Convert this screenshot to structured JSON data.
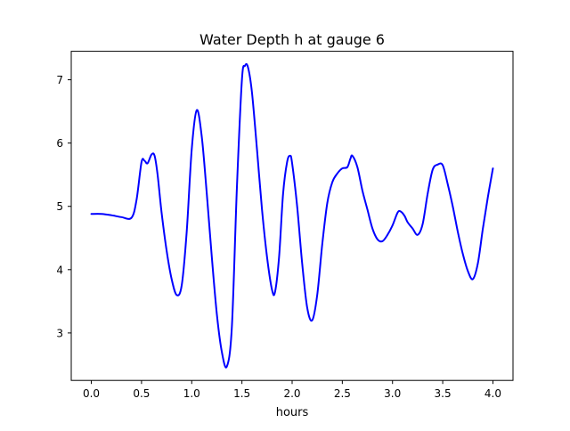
{
  "chart_data": {
    "type": "line",
    "title": "Water Depth h at gauge 6",
    "xlabel": "hours",
    "ylabel": "",
    "xlim": [
      -0.2,
      4.2
    ],
    "ylim": [
      2.25,
      7.45
    ],
    "xticks": [
      0.0,
      0.5,
      1.0,
      1.5,
      2.0,
      2.5,
      3.0,
      3.5,
      4.0
    ],
    "xtick_labels": [
      "0.0",
      "0.5",
      "1.0",
      "1.5",
      "2.0",
      "2.5",
      "3.0",
      "3.5",
      "4.0"
    ],
    "yticks": [
      3,
      4,
      5,
      6,
      7
    ],
    "ytick_labels": [
      "3",
      "4",
      "5",
      "6",
      "7"
    ],
    "grid": false,
    "series": [
      {
        "color": "#0000ff",
        "x": [
          0.0,
          0.1,
          0.2,
          0.3,
          0.4,
          0.45,
          0.5,
          0.53,
          0.56,
          0.6,
          0.63,
          0.66,
          0.7,
          0.75,
          0.8,
          0.85,
          0.9,
          0.95,
          1.0,
          1.05,
          1.1,
          1.15,
          1.2,
          1.25,
          1.3,
          1.35,
          1.4,
          1.45,
          1.5,
          1.53,
          1.56,
          1.6,
          1.65,
          1.7,
          1.75,
          1.8,
          1.83,
          1.87,
          1.91,
          1.95,
          1.98,
          2.0,
          2.05,
          2.1,
          2.15,
          2.2,
          2.25,
          2.3,
          2.35,
          2.4,
          2.45,
          2.5,
          2.55,
          2.58,
          2.6,
          2.65,
          2.7,
          2.75,
          2.8,
          2.85,
          2.9,
          2.95,
          3.0,
          3.05,
          3.08,
          3.12,
          3.15,
          3.2,
          3.25,
          3.3,
          3.35,
          3.4,
          3.45,
          3.5,
          3.55,
          3.6,
          3.65,
          3.7,
          3.75,
          3.8,
          3.85,
          3.9,
          3.95,
          4.0
        ],
        "y": [
          4.88,
          4.88,
          4.86,
          4.83,
          4.82,
          5.1,
          5.7,
          5.72,
          5.68,
          5.82,
          5.8,
          5.5,
          4.9,
          4.3,
          3.85,
          3.6,
          3.75,
          4.6,
          5.9,
          6.52,
          6.1,
          5.2,
          4.2,
          3.3,
          2.7,
          2.47,
          3.1,
          5.3,
          7.0,
          7.22,
          7.2,
          6.8,
          5.9,
          4.95,
          4.2,
          3.68,
          3.65,
          4.2,
          5.2,
          5.7,
          5.8,
          5.68,
          5.0,
          4.1,
          3.4,
          3.2,
          3.6,
          4.4,
          5.05,
          5.38,
          5.52,
          5.6,
          5.62,
          5.75,
          5.8,
          5.62,
          5.25,
          4.95,
          4.65,
          4.48,
          4.45,
          4.55,
          4.7,
          4.9,
          4.92,
          4.85,
          4.75,
          4.65,
          4.55,
          4.72,
          5.2,
          5.58,
          5.66,
          5.65,
          5.35,
          5.0,
          4.6,
          4.25,
          3.98,
          3.85,
          4.1,
          4.65,
          5.15,
          5.6
        ]
      }
    ]
  }
}
